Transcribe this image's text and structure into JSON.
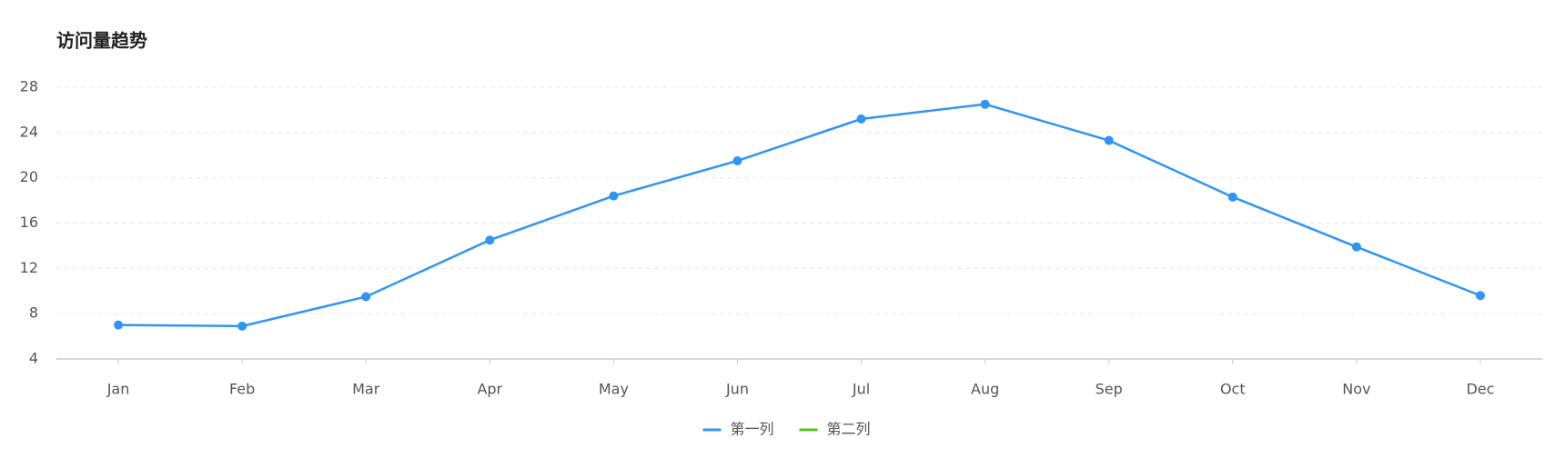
{
  "chart_data": {
    "type": "line",
    "title": "访问量趋势",
    "categories": [
      "Jan",
      "Feb",
      "Mar",
      "Apr",
      "May",
      "Jun",
      "Jul",
      "Aug",
      "Sep",
      "Oct",
      "Nov",
      "Dec"
    ],
    "series": [
      {
        "name": "第一列",
        "color": "#2f95f5",
        "values": [
          7.0,
          6.9,
          9.5,
          14.5,
          18.4,
          21.5,
          25.2,
          26.5,
          23.3,
          18.3,
          13.9,
          9.6
        ]
      },
      {
        "name": "第二列",
        "color": "#52c41a",
        "values": [
          null,
          null,
          null,
          null,
          null,
          null,
          null,
          null,
          null,
          null,
          null,
          null
        ]
      }
    ],
    "ylim": [
      4,
      28
    ],
    "yticks": [
      4,
      8,
      12,
      16,
      20,
      24,
      28
    ],
    "grid": true,
    "legend": "bottom"
  }
}
